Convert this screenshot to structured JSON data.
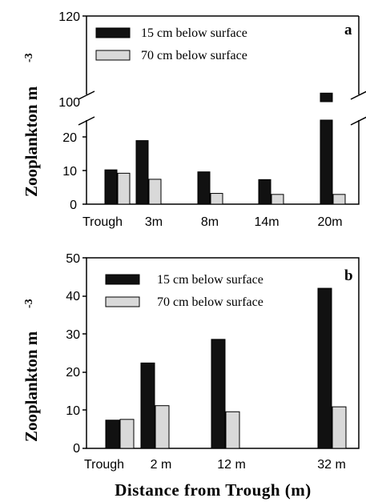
{
  "colors": {
    "dark": "#111111",
    "light": "#d9d9d9"
  },
  "chart_data": [
    {
      "panel": "a",
      "type": "bar",
      "ylabel": "Zooplankton m",
      "ylabel_exp": "-3",
      "categories": [
        "Trough",
        "3m",
        "8m",
        "14m",
        "20m"
      ],
      "series": [
        {
          "name": "15 cm below surface",
          "values": [
            10.2,
            18.9,
            9.6,
            7.3,
            102
          ]
        },
        {
          "name": "70 cm below surface",
          "values": [
            9.2,
            7.4,
            3.2,
            2.9,
            2.9
          ]
        }
      ],
      "axis_break": {
        "lower": [
          0,
          25
        ],
        "upper": [
          100,
          120
        ]
      },
      "y_ticks_lower": [
        "0",
        "10",
        "20"
      ],
      "y_ticks_upper": [
        "100",
        "120"
      ],
      "legend_position": "top-left"
    },
    {
      "panel": "b",
      "type": "bar",
      "ylabel": "Zooplankton m",
      "ylabel_exp": "-3",
      "xlabel": "Distance from Trough (m)",
      "categories": [
        "Trough",
        "2 m",
        "12 m",
        "32 m"
      ],
      "series": [
        {
          "name": "15 cm below surface",
          "values": [
            7.4,
            22.4,
            28.6,
            42.0
          ]
        },
        {
          "name": "70 cm below surface",
          "values": [
            7.6,
            11.2,
            9.6,
            10.9
          ]
        }
      ],
      "ylim": [
        0,
        50
      ],
      "y_ticks": [
        "0",
        "10",
        "20",
        "30",
        "40",
        "50"
      ],
      "legend_position": "top-left"
    }
  ]
}
